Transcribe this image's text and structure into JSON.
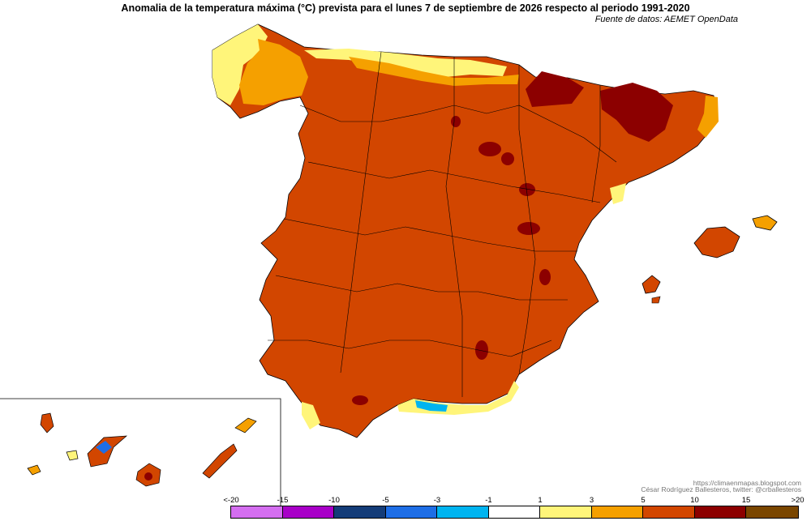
{
  "title": "Anomalia de la temperatura máxima (°C) prevista para el lunes 7 de septiembre de 2026 respecto al periodo 1991-2020",
  "source": "Fuente de datos: AEMET OpenData",
  "credits": {
    "blog": "https://climaenmapas.blogspot.com",
    "author": "César Rodríguez Ballesteros, twitter: @crballesteros"
  },
  "legend": {
    "ticks": [
      "<-20",
      "-15",
      "-10",
      "-5",
      "-3",
      "-1",
      "1",
      "3",
      "5",
      "10",
      "15",
      ">20"
    ],
    "colors": [
      "#d46ef0",
      "#a800c8",
      "#143c78",
      "#1e6ee6",
      "#00b4f0",
      "#ffffff",
      "#fff57a",
      "#f5a000",
      "#d24600",
      "#8c0000",
      "#7a4600"
    ]
  },
  "colors": {
    "dominant": "#d24600",
    "hot": "#8c0000",
    "warm": "#f5a000",
    "mild": "#fff57a",
    "cool": "#00b4f0"
  }
}
